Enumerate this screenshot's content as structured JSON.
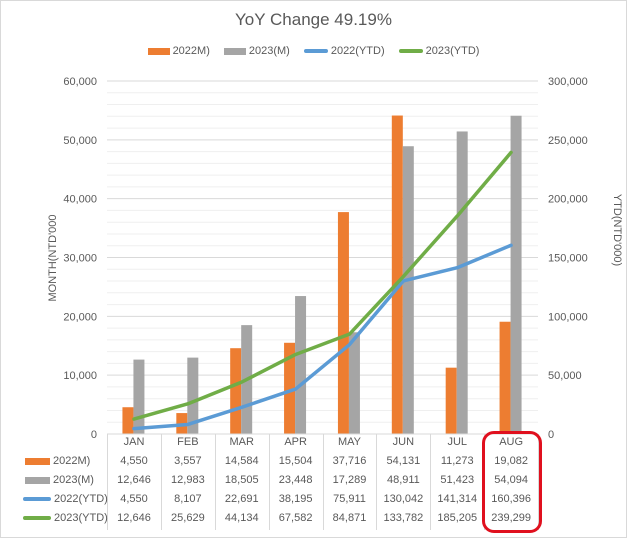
{
  "chart_data": {
    "type": "bar+line",
    "title": "YoY Change 49.19%",
    "categories": [
      "JAN",
      "FEB",
      "MAR",
      "APR",
      "MAY",
      "JUN",
      "JUL",
      "AUG"
    ],
    "series": [
      {
        "name": "2022M)",
        "type": "bar",
        "axis": "primary",
        "color": "#ed7d31",
        "values": [
          4550,
          3557,
          14584,
          15504,
          37716,
          54131,
          11273,
          19082
        ],
        "labels": [
          "4,550",
          "3,557",
          "14,584",
          "15,504",
          "37,716",
          "54,131",
          "11,273",
          "19,082"
        ]
      },
      {
        "name": "2023(M)",
        "type": "bar",
        "axis": "primary",
        "color": "#a5a5a5",
        "values": [
          12646,
          12983,
          18505,
          23448,
          17289,
          48911,
          51423,
          54094
        ],
        "labels": [
          "12,646",
          "12,983",
          "18,505",
          "23,448",
          "17,289",
          "48,911",
          "51,423",
          "54,094"
        ]
      },
      {
        "name": "2022(YTD)",
        "type": "line",
        "axis": "secondary",
        "color": "#5b9bd5",
        "values": [
          4550,
          8107,
          22691,
          38195,
          75911,
          130042,
          141314,
          160396
        ],
        "labels": [
          "4,550",
          "8,107",
          "22,691",
          "38,195",
          "75,911",
          "130,042",
          "141,314",
          "160,396"
        ]
      },
      {
        "name": "2023(YTD)",
        "type": "line",
        "axis": "secondary",
        "color": "#70ad47",
        "values": [
          12646,
          25629,
          44134,
          67582,
          84871,
          133782,
          185205,
          239299
        ],
        "labels": [
          "12,646",
          "25,629",
          "44,134",
          "67,582",
          "84,871",
          "133,782",
          "185,205",
          "239,299"
        ]
      }
    ],
    "ylabel": "MONTH(NTD'000",
    "y2label": "YTD(NTD'000)",
    "ylim": [
      0,
      60000
    ],
    "y2lim": [
      0,
      300000
    ],
    "yticks": [
      "0",
      "10,000",
      "20,000",
      "30,000",
      "40,000",
      "50,000",
      "60,000"
    ],
    "y2ticks": [
      "0",
      "50,000",
      "100,000",
      "150,000",
      "200,000",
      "250,000",
      "300,000"
    ],
    "grid": true,
    "legend_position": "top",
    "data_table": true,
    "annotation": "AUG column highlighted with red rounded rectangle"
  }
}
